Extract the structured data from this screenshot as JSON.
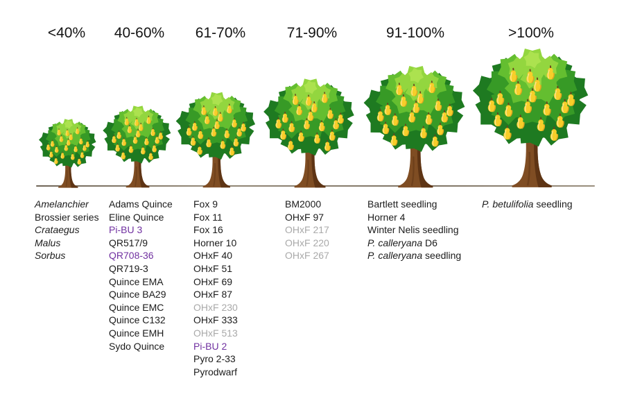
{
  "colors": {
    "text": "#1b1b1b",
    "highlight_purple": "#7030A0",
    "dimmed_gray": "#A9A9A9",
    "ground_line": "#857a6a",
    "foliage_dark": "#1E7A21",
    "foliage_mid": "#379A26",
    "foliage_light": "#64BE30",
    "foliage_highlight": "#93D63F",
    "pear_yellow": "#F7CE2A",
    "trunk_brown": "#7F4D23"
  },
  "columns": [
    {
      "vigour_label": "<40%",
      "items": [
        {
          "text": "Amelanchier",
          "italic": true
        },
        {
          "text": "Brossier series"
        },
        {
          "text": "Crataegus",
          "italic": true
        },
        {
          "text": "Malus",
          "italic": true
        },
        {
          "text": "Sorbus",
          "italic": true
        }
      ]
    },
    {
      "vigour_label": "40-60%",
      "items": [
        {
          "text": "Adams Quince"
        },
        {
          "text": "Eline Quince"
        },
        {
          "text": "Pi-BU 3",
          "color": "#7030A0"
        },
        {
          "text": "QR517/9"
        },
        {
          "text": "QR708-36",
          "color": "#7030A0"
        },
        {
          "text": "QR719-3"
        },
        {
          "text": "Quince EMA"
        },
        {
          "text": "Quince BA29"
        },
        {
          "text": "Quince EMC"
        },
        {
          "text": "Quince C132"
        },
        {
          "text": "Quince EMH"
        },
        {
          "text": "Sydo Quince"
        }
      ]
    },
    {
      "vigour_label": "61-70%",
      "items": [
        {
          "text": "Fox 9"
        },
        {
          "text": "Fox 11"
        },
        {
          "text": "Fox 16"
        },
        {
          "text": "Horner 10"
        },
        {
          "text": "OHxF 40"
        },
        {
          "text": "OHxF 51"
        },
        {
          "text": "OHxF 69"
        },
        {
          "text": "OHxF 87"
        },
        {
          "text": "OHxF 230",
          "color": "#A9A9A9"
        },
        {
          "text": "OHxF 333"
        },
        {
          "text": "OHxF 513",
          "color": "#A9A9A9"
        },
        {
          "text": "Pi-BU 2",
          "color": "#7030A0"
        },
        {
          "text": "Pyro 2-33"
        },
        {
          "text": "Pyrodwarf"
        }
      ]
    },
    {
      "vigour_label": "71-90%",
      "items": [
        {
          "text": "BM2000"
        },
        {
          "text": "OHxF 97"
        },
        {
          "text": "OHxF 217",
          "color": "#A9A9A9"
        },
        {
          "text": "OHxF 220",
          "color": "#A9A9A9"
        },
        {
          "text": "OHxF 267",
          "color": "#A9A9A9"
        }
      ]
    },
    {
      "vigour_label": "91-100%",
      "items": [
        {
          "text": "Bartlett seedling"
        },
        {
          "text": "Horner 4"
        },
        {
          "text": "Winter Nelis seedling"
        },
        {
          "italic_prefix": "P. calleryana",
          "rest": " D6"
        },
        {
          "italic_prefix": "P. calleryana",
          "rest": " seedling"
        }
      ]
    },
    {
      "vigour_label": ">100%",
      "items": [
        {
          "italic_prefix": "P. betulifolia",
          "rest": " seedling"
        }
      ]
    }
  ]
}
